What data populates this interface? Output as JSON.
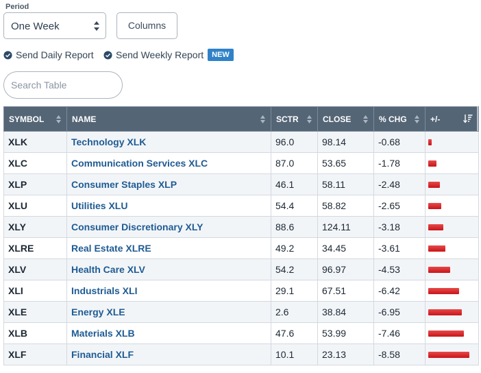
{
  "controls": {
    "period_label": "Period",
    "period_value": "One Week",
    "columns_label": "Columns",
    "send_daily_label": "Send Daily Report",
    "send_weekly_label": "Send Weekly Report",
    "new_badge": "NEW",
    "search_placeholder": "Search Table"
  },
  "colors": {
    "header_bg": "#546576",
    "link": "#1f5b93",
    "bar": "#c8141a",
    "badge": "#2f82c8"
  },
  "table": {
    "headers": {
      "symbol": "SYMBOL",
      "name": "NAME",
      "sctr": "SCTR",
      "close": "CLOSE",
      "pct_chg": "% CHG",
      "plus_minus": "+/-"
    },
    "rows": [
      {
        "symbol": "XLK",
        "name": "Technology XLK",
        "sctr": "96.0",
        "close": "98.14",
        "chg": "-0.68",
        "chg_value": -0.68
      },
      {
        "symbol": "XLC",
        "name": "Communication Services XLC",
        "sctr": "87.0",
        "close": "53.65",
        "chg": "-1.78",
        "chg_value": -1.78
      },
      {
        "symbol": "XLP",
        "name": "Consumer Staples XLP",
        "sctr": "46.1",
        "close": "58.11",
        "chg": "-2.48",
        "chg_value": -2.48
      },
      {
        "symbol": "XLU",
        "name": "Utilities XLU",
        "sctr": "54.4",
        "close": "58.82",
        "chg": "-2.65",
        "chg_value": -2.65
      },
      {
        "symbol": "XLY",
        "name": "Consumer Discretionary XLY",
        "sctr": "88.6",
        "close": "124.11",
        "chg": "-3.18",
        "chg_value": -3.18
      },
      {
        "symbol": "XLRE",
        "name": "Real Estate XLRE",
        "sctr": "49.2",
        "close": "34.45",
        "chg": "-3.61",
        "chg_value": -3.61
      },
      {
        "symbol": "XLV",
        "name": "Health Care XLV",
        "sctr": "54.2",
        "close": "96.97",
        "chg": "-4.53",
        "chg_value": -4.53
      },
      {
        "symbol": "XLI",
        "name": "Industrials XLI",
        "sctr": "29.1",
        "close": "67.51",
        "chg": "-6.42",
        "chg_value": -6.42
      },
      {
        "symbol": "XLE",
        "name": "Energy XLE",
        "sctr": "2.6",
        "close": "38.84",
        "chg": "-6.95",
        "chg_value": -6.95
      },
      {
        "symbol": "XLB",
        "name": "Materials XLB",
        "sctr": "47.6",
        "close": "53.99",
        "chg": "-7.46",
        "chg_value": -7.46
      },
      {
        "symbol": "XLF",
        "name": "Financial XLF",
        "sctr": "10.1",
        "close": "23.13",
        "chg": "-8.58",
        "chg_value": -8.58
      }
    ]
  }
}
